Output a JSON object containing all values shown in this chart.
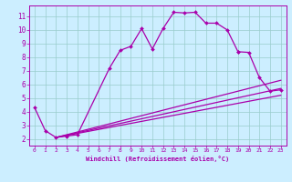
{
  "xlabel": "Windchill (Refroidissement éolien,°C)",
  "bg_color": "#cceeff",
  "line_color": "#aa00aa",
  "grid_color": "#99cccc",
  "xlim": [
    -0.5,
    23.5
  ],
  "ylim": [
    1.5,
    11.8
  ],
  "yticks": [
    2,
    3,
    4,
    5,
    6,
    7,
    8,
    9,
    10,
    11
  ],
  "xticks": [
    0,
    1,
    2,
    3,
    4,
    5,
    6,
    7,
    8,
    9,
    10,
    11,
    12,
    13,
    14,
    15,
    16,
    17,
    18,
    19,
    20,
    21,
    22,
    23
  ],
  "curve1_x": [
    0,
    1,
    2,
    3,
    4,
    7,
    8,
    9,
    10,
    11,
    12,
    13,
    14,
    15,
    16,
    17,
    18,
    19
  ],
  "curve1_y": [
    4.3,
    2.6,
    2.1,
    2.2,
    2.3,
    7.2,
    8.5,
    8.8,
    10.1,
    8.6,
    10.1,
    11.3,
    11.25,
    11.3,
    10.5,
    10.5,
    10.0,
    8.4
  ],
  "line2_x": [
    2,
    23
  ],
  "line2_y": [
    2.1,
    5.2
  ],
  "line3_x": [
    2,
    23
  ],
  "line3_y": [
    2.1,
    5.7
  ],
  "line4_x": [
    2,
    23
  ],
  "line4_y": [
    2.1,
    6.3
  ],
  "curve5_x": [
    19,
    20,
    21,
    22,
    23
  ],
  "curve5_y": [
    8.4,
    8.35,
    6.5,
    5.5,
    5.6
  ]
}
